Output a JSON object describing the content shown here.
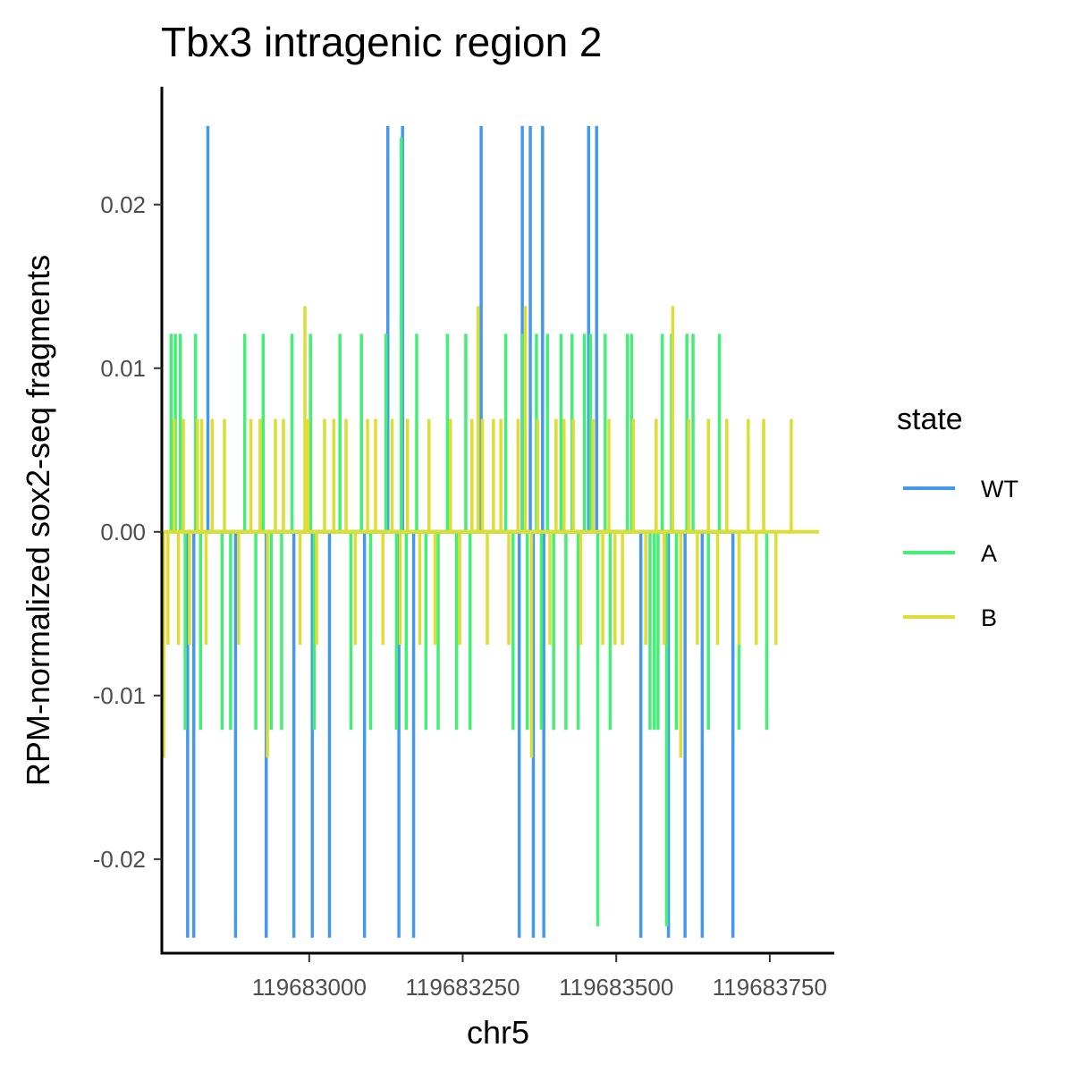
{
  "chart_data": {
    "type": "line",
    "title": "Tbx3 intragenic region 2",
    "xlabel": "chr5",
    "ylabel": "RPM-normalized sox2-seq fragments",
    "xlim": [
      119682760,
      119683855
    ],
    "ylim": [
      -0.0258,
      0.0272
    ],
    "x_ticks": [
      119683000,
      119683250,
      119683500,
      119683750
    ],
    "x_tick_labels": [
      "119683000",
      "119683250",
      "119683500",
      "119683750"
    ],
    "y_ticks": [
      -0.02,
      -0.01,
      0.0,
      0.01,
      0.02
    ],
    "y_tick_labels": [
      "-0.02",
      "-0.01",
      "0.00",
      "0.01",
      "0.02"
    ],
    "grid": false,
    "legend": {
      "title": "state",
      "position": "right"
    },
    "series": [
      {
        "name": "WT",
        "color": "#4499ee",
        "baseline": 0,
        "spikes": [
          {
            "x": 119682802,
            "y": -0.0248
          },
          {
            "x": 119682812,
            "y": -0.0248
          },
          {
            "x": 119682835,
            "y": 0.0248
          },
          {
            "x": 119682880,
            "y": -0.0248
          },
          {
            "x": 119682930,
            "y": -0.0248
          },
          {
            "x": 119682975,
            "y": -0.0248
          },
          {
            "x": 119683005,
            "y": -0.0248
          },
          {
            "x": 119683033,
            "y": -0.0248
          },
          {
            "x": 119683090,
            "y": -0.0248
          },
          {
            "x": 119683128,
            "y": 0.0248
          },
          {
            "x": 119683152,
            "y": 0.0248
          },
          {
            "x": 119683146,
            "y": -0.0248
          },
          {
            "x": 119683170,
            "y": -0.0248
          },
          {
            "x": 119683280,
            "y": 0.0248
          },
          {
            "x": 119683347,
            "y": 0.0248
          },
          {
            "x": 119683342,
            "y": -0.0248
          },
          {
            "x": 119683360,
            "y": 0.0248
          },
          {
            "x": 119683365,
            "y": -0.0248
          },
          {
            "x": 119683380,
            "y": 0.0248
          },
          {
            "x": 119683382,
            "y": -0.0248
          },
          {
            "x": 119683455,
            "y": 0.0248
          },
          {
            "x": 119683468,
            "y": 0.0248
          },
          {
            "x": 119683540,
            "y": -0.0248
          },
          {
            "x": 119683585,
            "y": -0.0248
          },
          {
            "x": 119683612,
            "y": -0.0248
          },
          {
            "x": 119683640,
            "y": -0.0248
          },
          {
            "x": 119683690,
            "y": -0.0248
          }
        ]
      },
      {
        "name": "A",
        "color": "#44ee77",
        "baseline": 0,
        "spikes": [
          {
            "x": 119682775,
            "y": 0.0121
          },
          {
            "x": 119682782,
            "y": 0.0121
          },
          {
            "x": 119682790,
            "y": 0.0121
          },
          {
            "x": 119682798,
            "y": -0.0121
          },
          {
            "x": 119682815,
            "y": 0.0121
          },
          {
            "x": 119682823,
            "y": -0.0121
          },
          {
            "x": 119682858,
            "y": -0.0121
          },
          {
            "x": 119682872,
            "y": -0.0121
          },
          {
            "x": 119682895,
            "y": 0.0121
          },
          {
            "x": 119682913,
            "y": -0.0121
          },
          {
            "x": 119682925,
            "y": 0.0121
          },
          {
            "x": 119682938,
            "y": -0.0121
          },
          {
            "x": 119682955,
            "y": -0.0121
          },
          {
            "x": 119682972,
            "y": 0.0121
          },
          {
            "x": 119683002,
            "y": 0.0121
          },
          {
            "x": 119683008,
            "y": -0.0121
          },
          {
            "x": 119683050,
            "y": 0.0121
          },
          {
            "x": 119683068,
            "y": -0.0121
          },
          {
            "x": 119683085,
            "y": 0.0121
          },
          {
            "x": 119683100,
            "y": -0.0121
          },
          {
            "x": 119683125,
            "y": 0.0121
          },
          {
            "x": 119683142,
            "y": -0.0121
          },
          {
            "x": 119683150,
            "y": 0.0241
          },
          {
            "x": 119683158,
            "y": -0.0121
          },
          {
            "x": 119683175,
            "y": 0.0121
          },
          {
            "x": 119683190,
            "y": -0.0121
          },
          {
            "x": 119683210,
            "y": -0.0121
          },
          {
            "x": 119683225,
            "y": 0.0121
          },
          {
            "x": 119683240,
            "y": -0.0121
          },
          {
            "x": 119683255,
            "y": 0.0121
          },
          {
            "x": 119683262,
            "y": -0.0121
          },
          {
            "x": 119683275,
            "y": 0.0121
          },
          {
            "x": 119683320,
            "y": 0.0121
          },
          {
            "x": 119683332,
            "y": -0.0121
          },
          {
            "x": 119683348,
            "y": 0.0121
          },
          {
            "x": 119683355,
            "y": -0.0121
          },
          {
            "x": 119683370,
            "y": 0.0121
          },
          {
            "x": 119683378,
            "y": -0.0121
          },
          {
            "x": 119683388,
            "y": 0.0121
          },
          {
            "x": 119683398,
            "y": -0.0121
          },
          {
            "x": 119683410,
            "y": 0.0121
          },
          {
            "x": 119683418,
            "y": -0.0121
          },
          {
            "x": 119683428,
            "y": 0.0121
          },
          {
            "x": 119683438,
            "y": -0.0121
          },
          {
            "x": 119683448,
            "y": 0.0121
          },
          {
            "x": 119683458,
            "y": 0.0121
          },
          {
            "x": 119683470,
            "y": -0.0241
          },
          {
            "x": 119683482,
            "y": 0.0121
          },
          {
            "x": 119683490,
            "y": -0.0121
          },
          {
            "x": 119683518,
            "y": 0.0121
          },
          {
            "x": 119683525,
            "y": 0.0121
          },
          {
            "x": 119683555,
            "y": -0.0121
          },
          {
            "x": 119683562,
            "y": -0.0121
          },
          {
            "x": 119683568,
            "y": -0.0121
          },
          {
            "x": 119683575,
            "y": 0.0121
          },
          {
            "x": 119683582,
            "y": -0.0241
          },
          {
            "x": 119683590,
            "y": 0.0121
          },
          {
            "x": 119683598,
            "y": -0.0121
          },
          {
            "x": 119683615,
            "y": 0.0121
          },
          {
            "x": 119683625,
            "y": 0.0121
          },
          {
            "x": 119683650,
            "y": -0.0121
          },
          {
            "x": 119683668,
            "y": 0.0121
          },
          {
            "x": 119683700,
            "y": -0.0121
          },
          {
            "x": 119683745,
            "y": -0.0121
          }
        ]
      },
      {
        "name": "B",
        "color": "#dddd33",
        "baseline": 0,
        "spikes": [
          {
            "x": 119682763,
            "y": -0.0138
          },
          {
            "x": 119682770,
            "y": -0.0069
          },
          {
            "x": 119682780,
            "y": 0.0069
          },
          {
            "x": 119682787,
            "y": -0.0069
          },
          {
            "x": 119682795,
            "y": 0.0069
          },
          {
            "x": 119682805,
            "y": -0.0069
          },
          {
            "x": 119682818,
            "y": 0.0069
          },
          {
            "x": 119682825,
            "y": 0.0069
          },
          {
            "x": 119682832,
            "y": -0.0069
          },
          {
            "x": 119682842,
            "y": 0.0069
          },
          {
            "x": 119682862,
            "y": 0.0069
          },
          {
            "x": 119682885,
            "y": -0.0069
          },
          {
            "x": 119682905,
            "y": 0.0069
          },
          {
            "x": 119682920,
            "y": 0.0069
          },
          {
            "x": 119682932,
            "y": -0.0138
          },
          {
            "x": 119682945,
            "y": 0.0069
          },
          {
            "x": 119682958,
            "y": 0.0069
          },
          {
            "x": 119682985,
            "y": -0.0069
          },
          {
            "x": 119682993,
            "y": 0.0138
          },
          {
            "x": 119682998,
            "y": 0.0069
          },
          {
            "x": 119683012,
            "y": -0.0069
          },
          {
            "x": 119683025,
            "y": 0.0069
          },
          {
            "x": 119683040,
            "y": 0.0069
          },
          {
            "x": 119683060,
            "y": 0.0069
          },
          {
            "x": 119683075,
            "y": -0.0069
          },
          {
            "x": 119683095,
            "y": 0.0069
          },
          {
            "x": 119683108,
            "y": 0.0069
          },
          {
            "x": 119683120,
            "y": -0.0069
          },
          {
            "x": 119683135,
            "y": 0.0069
          },
          {
            "x": 119683148,
            "y": -0.0069
          },
          {
            "x": 119683160,
            "y": 0.0069
          },
          {
            "x": 119683180,
            "y": -0.0069
          },
          {
            "x": 119683195,
            "y": 0.0069
          },
          {
            "x": 119683205,
            "y": -0.0069
          },
          {
            "x": 119683230,
            "y": 0.0069
          },
          {
            "x": 119683245,
            "y": -0.0069
          },
          {
            "x": 119683265,
            "y": 0.0069
          },
          {
            "x": 119683275,
            "y": 0.0138
          },
          {
            "x": 119683282,
            "y": 0.0069
          },
          {
            "x": 119683290,
            "y": -0.0069
          },
          {
            "x": 119683300,
            "y": 0.0069
          },
          {
            "x": 119683312,
            "y": 0.0069
          },
          {
            "x": 119683325,
            "y": -0.0069
          },
          {
            "x": 119683340,
            "y": 0.0069
          },
          {
            "x": 119683352,
            "y": 0.0138
          },
          {
            "x": 119683362,
            "y": -0.0138
          },
          {
            "x": 119683372,
            "y": 0.0069
          },
          {
            "x": 119683392,
            "y": -0.0069
          },
          {
            "x": 119683402,
            "y": 0.0069
          },
          {
            "x": 119683415,
            "y": 0.0069
          },
          {
            "x": 119683430,
            "y": 0.0069
          },
          {
            "x": 119683442,
            "y": -0.0069
          },
          {
            "x": 119683462,
            "y": 0.0069
          },
          {
            "x": 119683478,
            "y": -0.0069
          },
          {
            "x": 119683488,
            "y": 0.0069
          },
          {
            "x": 119683498,
            "y": -0.0069
          },
          {
            "x": 119683510,
            "y": -0.0069
          },
          {
            "x": 119683528,
            "y": 0.0069
          },
          {
            "x": 119683548,
            "y": -0.0069
          },
          {
            "x": 119683565,
            "y": 0.0069
          },
          {
            "x": 119683578,
            "y": -0.0069
          },
          {
            "x": 119683592,
            "y": 0.0138
          },
          {
            "x": 119683605,
            "y": -0.0138
          },
          {
            "x": 119683618,
            "y": 0.0069
          },
          {
            "x": 119683632,
            "y": -0.0069
          },
          {
            "x": 119683650,
            "y": 0.0069
          },
          {
            "x": 119683665,
            "y": -0.0069
          },
          {
            "x": 119683680,
            "y": 0.0069
          },
          {
            "x": 119683700,
            "y": -0.0069
          },
          {
            "x": 119683715,
            "y": 0.0069
          },
          {
            "x": 119683728,
            "y": -0.0069
          },
          {
            "x": 119683740,
            "y": 0.0069
          },
          {
            "x": 119683760,
            "y": -0.0069
          },
          {
            "x": 119683785,
            "y": 0.0069
          }
        ]
      }
    ]
  }
}
